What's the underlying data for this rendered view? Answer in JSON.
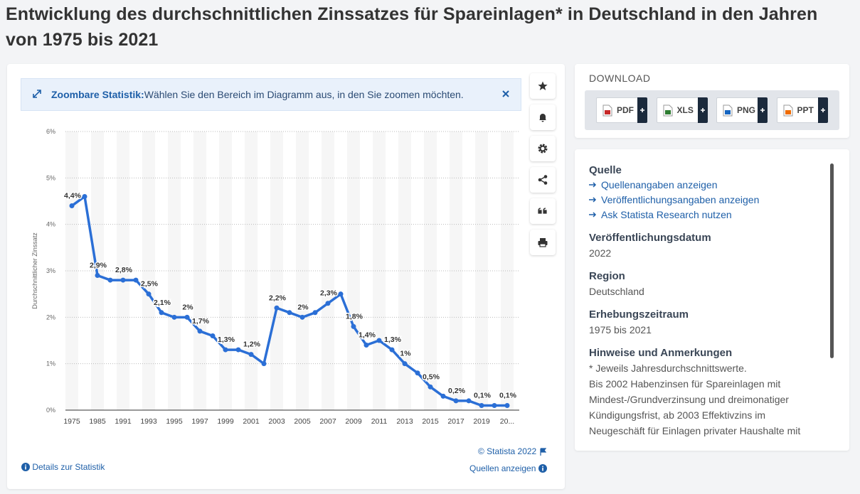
{
  "header": {
    "title": "Entwicklung des durchschnittlichen Zinssatzes für Spareinlagen* in Deutschland in den Jahren von 1975 bis 2021"
  },
  "notice": {
    "label": "Zoombare Statistik:",
    "text": "Wählen Sie den Bereich im Diagramm aus, in den Sie zoomen möchten."
  },
  "chart_data": {
    "type": "line",
    "y_label": "Durchschnittlicher Zinssatz",
    "categories": [
      "1975",
      null,
      "1985",
      null,
      "1991",
      null,
      "1993",
      null,
      "1995",
      null,
      "1997",
      null,
      "1999",
      null,
      "2001",
      null,
      "2003",
      null,
      "2005",
      null,
      "2007",
      null,
      "2009",
      null,
      "2011",
      null,
      "2013",
      null,
      "2015",
      null,
      "2017",
      null,
      "2019",
      null,
      "20..."
    ],
    "values": [
      4.4,
      4.6,
      2.9,
      2.8,
      2.8,
      2.8,
      2.5,
      2.1,
      2.0,
      2.0,
      1.7,
      1.6,
      1.3,
      1.3,
      1.2,
      1.0,
      2.2,
      2.1,
      2.0,
      2.1,
      2.3,
      2.5,
      1.8,
      1.4,
      1.5,
      1.3,
      1.0,
      0.8,
      0.5,
      0.3,
      0.2,
      0.2,
      0.1,
      0.1,
      0.1
    ],
    "value_labels": [
      "4,4%",
      null,
      "2,9%",
      null,
      "2,8%",
      null,
      "2,5%",
      "2,1%",
      null,
      "2%",
      "1,7%",
      null,
      "1,3%",
      null,
      "1,2%",
      null,
      "2,2%",
      null,
      "2%",
      null,
      "2,3%",
      null,
      "1,8%",
      "1,4%",
      null,
      "1,3%",
      "1%",
      null,
      "0,5%",
      null,
      "0,2%",
      null,
      "0,1%",
      null,
      "0,1%"
    ],
    "color": "#2b6fd6",
    "ylim": [
      0,
      6
    ],
    "yticks": [
      {
        "value": 0,
        "label": "0%"
      },
      {
        "value": 1,
        "label": "1%"
      },
      {
        "value": 2,
        "label": "2%"
      },
      {
        "value": 3,
        "label": "3%"
      },
      {
        "value": 4,
        "label": "4%"
      },
      {
        "value": 5,
        "label": "5%"
      },
      {
        "value": 6,
        "label": "6%"
      }
    ],
    "grid": true
  },
  "footer": {
    "copyright": "© Statista 2022",
    "details": "Details zur Statistik",
    "sources": "Quellen anzeigen"
  },
  "download": {
    "title": "DOWNLOAD",
    "buttons": [
      "PDF",
      "XLS",
      "PNG",
      "PPT"
    ]
  },
  "info": {
    "source_heading": "Quelle",
    "links": [
      "Quellenangaben anzeigen",
      "Veröffentlichungsangaben anzeigen",
      "Ask Statista Research nutzen"
    ],
    "sections": [
      {
        "heading": "Veröffentlichungsdatum",
        "text": "2022"
      },
      {
        "heading": "Region",
        "text": "Deutschland"
      },
      {
        "heading": "Erhebungszeitraum",
        "text": "1975 bis 2021"
      }
    ],
    "notes_heading": "Hinweise und Anmerkungen",
    "notes": [
      "* Jeweils Jahresdurchschnittswerte.",
      "Bis 2002 Habenzinsen für Spareinlagen mit Mindest-/Grundverzinsung und dreimonatiger Kündigungsfrist, ab 2003 Effektivzins im Neugeschäft für Einlagen privater Haushalte mit"
    ]
  }
}
